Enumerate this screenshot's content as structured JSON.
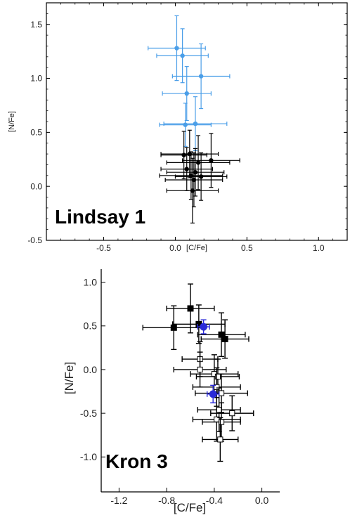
{
  "chart_data": [
    {
      "type": "scatter",
      "panel_label": "Lindsay 1",
      "xlabel": "[C/Fe]",
      "ylabel": "[N/Fe]",
      "xlim": [
        -0.9,
        1.2
      ],
      "ylim": [
        -0.5,
        1.7
      ],
      "xticks": [
        -0.5,
        0.0,
        0.5,
        1.0
      ],
      "yticks": [
        -0.5,
        0.0,
        0.5,
        1.0,
        1.5
      ],
      "grid": false,
      "series": [
        {
          "color": "#4a9ee8",
          "marker": "circle-filled",
          "points": [
            {
              "x": 0.01,
              "y": 1.28,
              "xerr": 0.2,
              "yerr": 0.3
            },
            {
              "x": 0.05,
              "y": 1.21,
              "xerr": 0.18,
              "yerr": 0.25
            },
            {
              "x": 0.18,
              "y": 1.02,
              "xerr": 0.2,
              "yerr": 0.3
            },
            {
              "x": 0.08,
              "y": 0.86,
              "xerr": 0.17,
              "yerr": 0.25
            },
            {
              "x": 0.14,
              "y": 0.58,
              "xerr": 0.22,
              "yerr": 0.25
            },
            {
              "x": 0.07,
              "y": 0.57,
              "xerr": 0.18,
              "yerr": 0.2
            }
          ]
        },
        {
          "color": "#000000",
          "marker": "circle-filled",
          "points": [
            {
              "x": 0.06,
              "y": 0.29,
              "xerr": 0.16,
              "yerr": 0.22
            },
            {
              "x": 0.1,
              "y": 0.3,
              "xerr": 0.2,
              "yerr": 0.22
            },
            {
              "x": 0.25,
              "y": 0.24,
              "xerr": 0.2,
              "yerr": 0.25
            },
            {
              "x": 0.16,
              "y": 0.22,
              "xerr": 0.22,
              "yerr": 0.25
            },
            {
              "x": 0.08,
              "y": 0.16,
              "xerr": 0.18,
              "yerr": 0.2
            },
            {
              "x": 0.14,
              "y": 0.13,
              "xerr": 0.2,
              "yerr": 0.22
            },
            {
              "x": 0.11,
              "y": 0.1,
              "xerr": 0.22,
              "yerr": 0.22
            },
            {
              "x": 0.18,
              "y": 0.09,
              "xerr": 0.18,
              "yerr": 0.22
            },
            {
              "x": 0.13,
              "y": 0.06,
              "xerr": 0.2,
              "yerr": 0.25
            },
            {
              "x": 0.12,
              "y": -0.04,
              "xerr": 0.18,
              "yerr": 0.3
            }
          ]
        }
      ]
    },
    {
      "type": "scatter",
      "panel_label": "Kron 3",
      "xlabel": "[C/Fe]",
      "ylabel": "[N/Fe]",
      "xlim": [
        -1.35,
        0.15
      ],
      "ylim": [
        -1.4,
        1.15
      ],
      "xticks": [
        -1.2,
        -0.8,
        -0.4,
        0.0
      ],
      "xtick_labels": [
        "-1.2",
        "-0.8",
        "-0.4",
        "0.0"
      ],
      "yticks": [
        -1.0,
        -0.5,
        0.0,
        0.5,
        1.0
      ],
      "ytick_labels": [
        "-1.0",
        "-0.5",
        "0.0",
        "0.5",
        "1.0"
      ],
      "grid": false,
      "series": [
        {
          "color": "#000000",
          "marker": "square-filled",
          "points": [
            {
              "x": -0.74,
              "y": 0.48,
              "xerr": 0.26,
              "yerr": 0.25
            },
            {
              "x": -0.6,
              "y": 0.7,
              "xerr": 0.2,
              "yerr": 0.28
            },
            {
              "x": -0.53,
              "y": 0.52,
              "xerr": 0.22,
              "yerr": 0.22
            },
            {
              "x": -0.34,
              "y": 0.4,
              "xerr": 0.2,
              "yerr": 0.25
            },
            {
              "x": -0.31,
              "y": 0.35,
              "xerr": 0.2,
              "yerr": 0.22
            }
          ]
        },
        {
          "color": "#000000",
          "marker": "square-open",
          "points": [
            {
              "x": -0.52,
              "y": 0.12,
              "xerr": 0.15,
              "yerr": 0.2
            },
            {
              "x": -0.52,
              "y": 0.0,
              "xerr": 0.22,
              "yerr": 0.2
            },
            {
              "x": -0.4,
              "y": -0.05,
              "xerr": 0.2,
              "yerr": 0.22
            },
            {
              "x": -0.37,
              "y": -0.08,
              "xerr": 0.18,
              "yerr": 0.2
            },
            {
              "x": -0.38,
              "y": -0.2,
              "xerr": 0.2,
              "yerr": 0.22
            },
            {
              "x": -0.34,
              "y": -0.27,
              "xerr": 0.22,
              "yerr": 0.22
            },
            {
              "x": -0.36,
              "y": -0.46,
              "xerr": 0.18,
              "yerr": 0.25
            },
            {
              "x": -0.25,
              "y": -0.5,
              "xerr": 0.18,
              "yerr": 0.2
            },
            {
              "x": -0.38,
              "y": -0.57,
              "xerr": 0.2,
              "yerr": 0.25
            },
            {
              "x": -0.34,
              "y": -0.6,
              "xerr": 0.16,
              "yerr": 0.22
            },
            {
              "x": -0.35,
              "y": -0.8,
              "xerr": 0.15,
              "yerr": 0.25
            }
          ]
        },
        {
          "color": "#2a2ad8",
          "marker": "circle-filled",
          "points": [
            {
              "x": -0.49,
              "y": 0.49,
              "xerr": 0.05,
              "yerr": 0.08
            },
            {
              "x": -0.41,
              "y": -0.28,
              "xerr": 0.05,
              "yerr": 0.1
            }
          ]
        }
      ]
    }
  ]
}
